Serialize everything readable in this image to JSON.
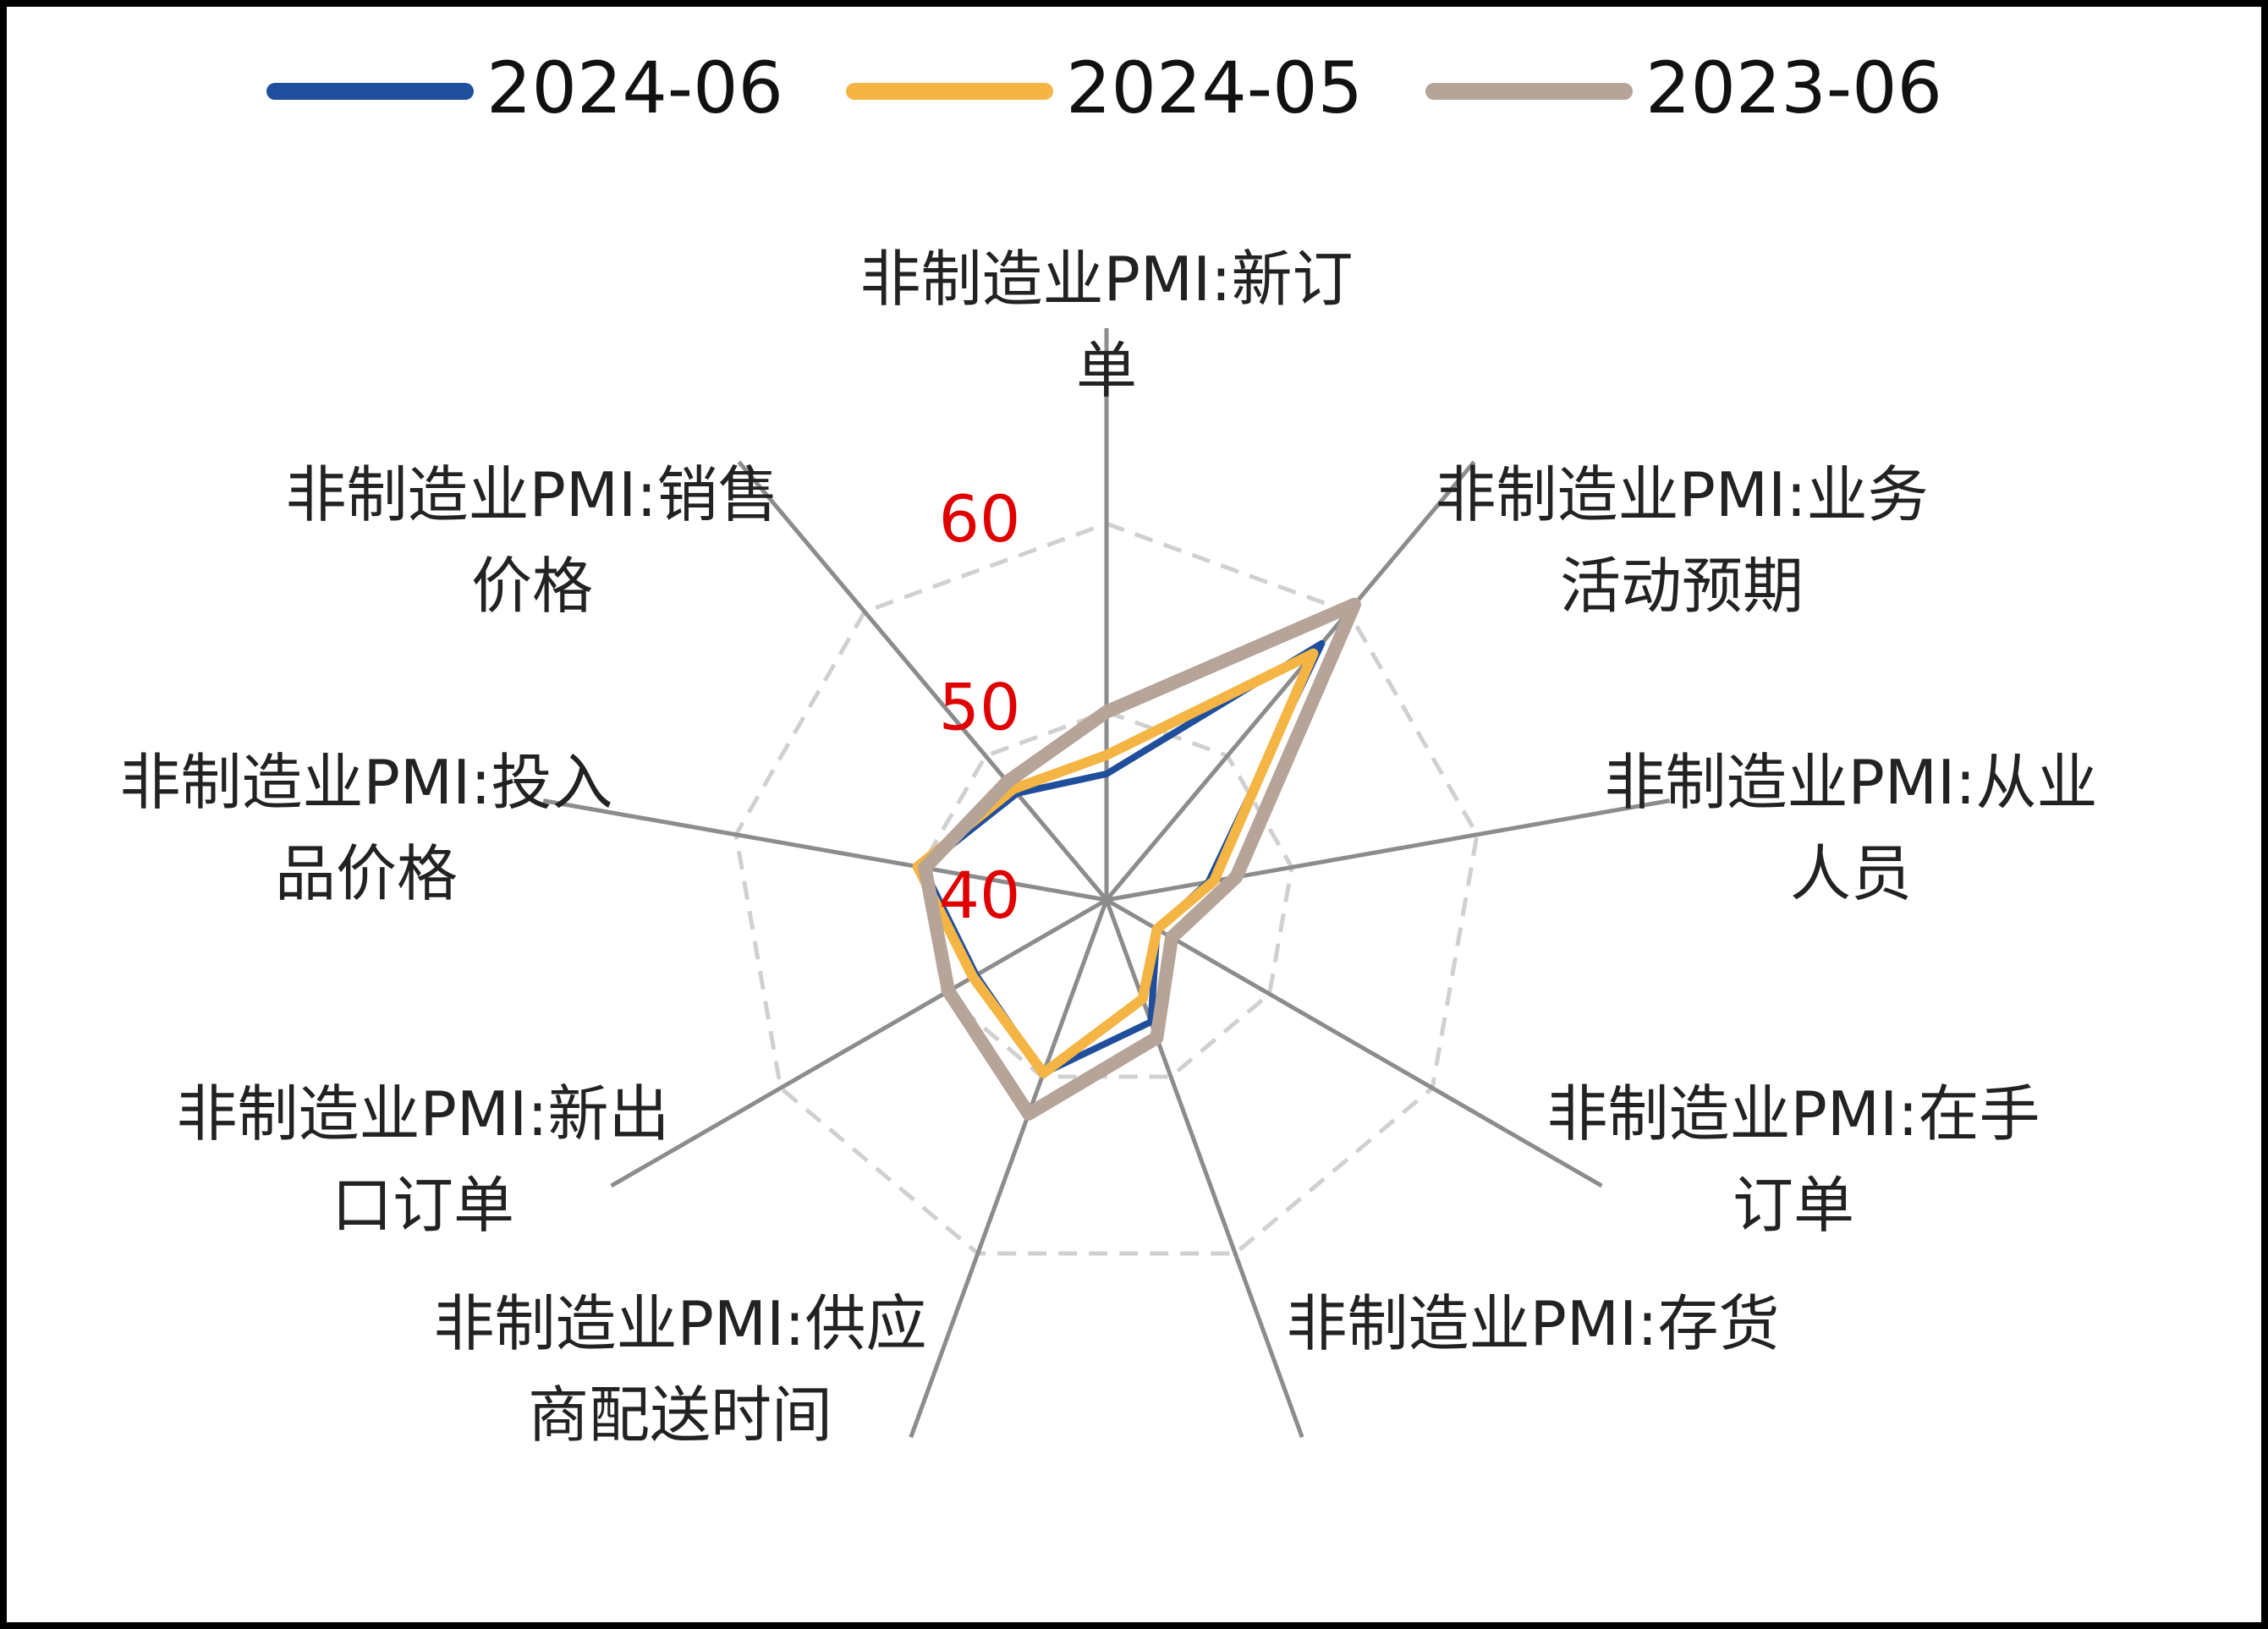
{
  "chart_data": {
    "type": "radar",
    "categories": [
      "非制造业PMI:新订单",
      "非制造业PMI:业务活动预期",
      "非制造业PMI:从业人员",
      "非制造业PMI:在手订单",
      "非制造业PMI:存货",
      "非制造业PMI:供应商配送时间",
      "非制造业PMI:新出口订单",
      "非制造业PMI:投入品价格",
      "非制造业PMI:销售价格"
    ],
    "series": [
      {
        "name": "2024-06",
        "color": "#1f4e9c",
        "values": [
          46.7,
          57.8,
          45.5,
          43.1,
          46.9,
          49.8,
          48.0,
          49.9,
          47.4
        ]
      },
      {
        "name": "2024-05",
        "color": "#f4b544",
        "values": [
          47.7,
          57.1,
          45.8,
          43.1,
          45.6,
          49.8,
          48.2,
          50.2,
          47.7
        ]
      },
      {
        "name": "2023-06",
        "color": "#b5a497",
        "values": [
          50.0,
          60.5,
          47.0,
          44.0,
          47.8,
          52.1,
          49.7,
          49.8,
          48.2
        ]
      }
    ],
    "ylim": [
      40,
      65
    ],
    "yticks": [
      40,
      50,
      60
    ],
    "grid": true,
    "tick_color": "#e00000"
  }
}
